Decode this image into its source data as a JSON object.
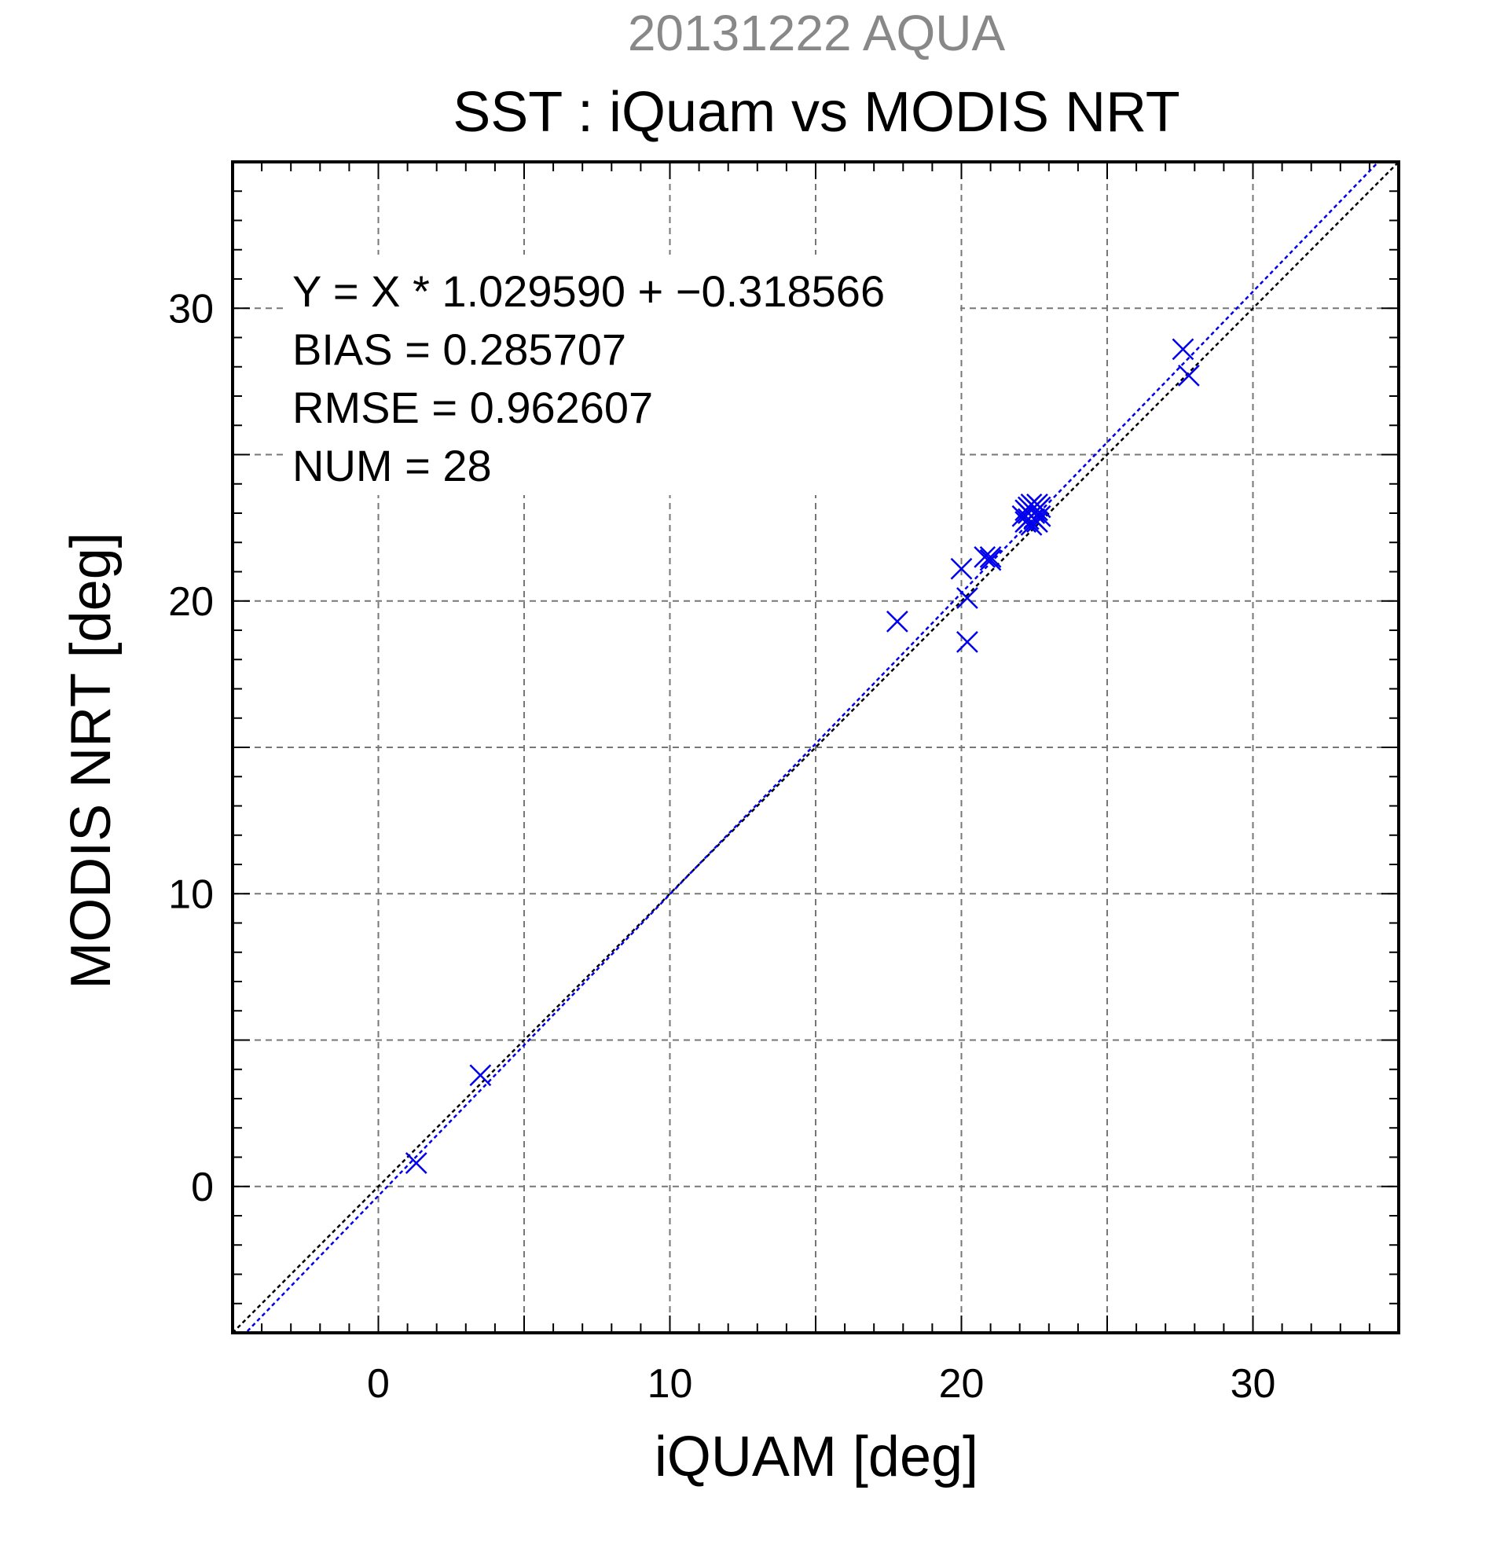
{
  "chart_data": {
    "type": "scatter",
    "supertitle": "20131222 AQUA",
    "title": "SST : iQuam vs MODIS NRT",
    "xlabel": "iQUAM [deg]",
    "ylabel": "MODIS NRT [deg]",
    "xlim": [
      -5,
      35
    ],
    "ylim": [
      -5,
      35
    ],
    "x_ticks": [
      0,
      10,
      20,
      30
    ],
    "y_ticks": [
      0,
      10,
      20,
      30
    ],
    "x_tick_labels": [
      "0",
      "10",
      "20",
      "30"
    ],
    "y_tick_labels": [
      "0",
      "10",
      "20",
      "30"
    ],
    "grid": true,
    "marker": "x",
    "marker_color": "#0000ee",
    "regression_color": "#0000ee",
    "identity_color": "#000000",
    "regression": {
      "slope": 1.02959,
      "intercept": -0.318566
    },
    "stats": [
      "Y = X * 1.029590 + −0.318566",
      "BIAS = 0.285707",
      "RMSE = 0.962607",
      "NUM = 28"
    ],
    "points": [
      {
        "x": 1.3,
        "y": 0.8
      },
      {
        "x": 3.5,
        "y": 3.8
      },
      {
        "x": 17.8,
        "y": 19.3
      },
      {
        "x": 20.0,
        "y": 21.1
      },
      {
        "x": 20.2,
        "y": 20.1
      },
      {
        "x": 20.2,
        "y": 18.6
      },
      {
        "x": 20.8,
        "y": 21.5
      },
      {
        "x": 21.0,
        "y": 21.4
      },
      {
        "x": 21.0,
        "y": 21.5
      },
      {
        "x": 22.1,
        "y": 22.9
      },
      {
        "x": 22.2,
        "y": 22.7
      },
      {
        "x": 22.2,
        "y": 23.1
      },
      {
        "x": 22.3,
        "y": 23.2
      },
      {
        "x": 22.3,
        "y": 22.8
      },
      {
        "x": 22.4,
        "y": 23.3
      },
      {
        "x": 22.4,
        "y": 22.9
      },
      {
        "x": 22.4,
        "y": 22.6
      },
      {
        "x": 22.5,
        "y": 23.0
      },
      {
        "x": 22.5,
        "y": 23.2
      },
      {
        "x": 22.5,
        "y": 22.8
      },
      {
        "x": 22.6,
        "y": 23.1
      },
      {
        "x": 22.6,
        "y": 22.7
      },
      {
        "x": 22.7,
        "y": 23.2
      },
      {
        "x": 22.7,
        "y": 22.9
      },
      {
        "x": 22.6,
        "y": 23.3
      },
      {
        "x": 22.3,
        "y": 23.0
      },
      {
        "x": 27.6,
        "y": 28.6
      },
      {
        "x": 27.8,
        "y": 27.7
      }
    ]
  }
}
